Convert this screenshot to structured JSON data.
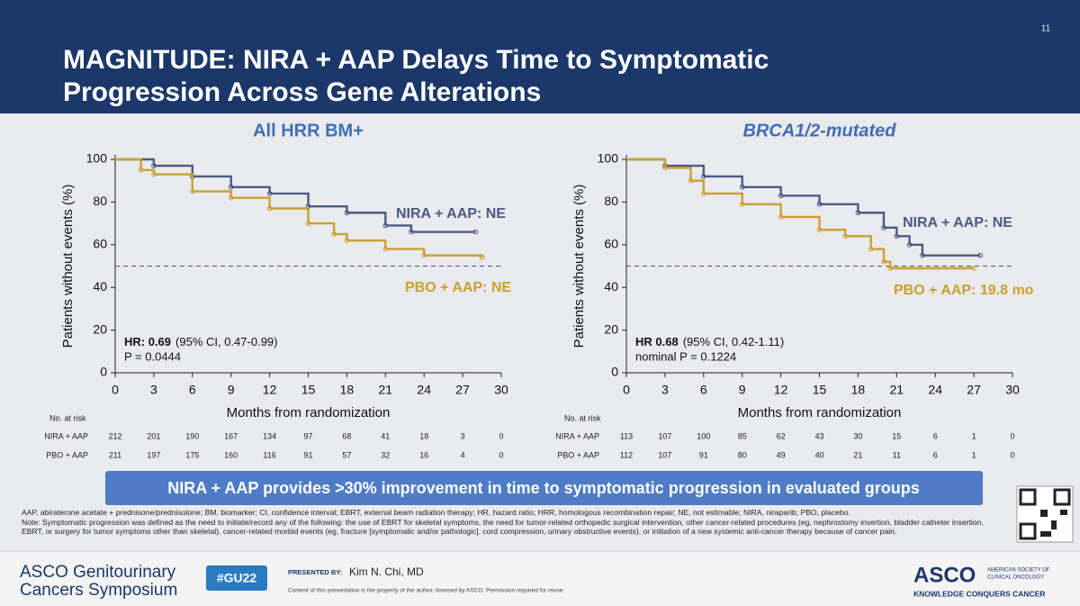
{
  "slide": {
    "page_number": "11",
    "title_line1": "MAGNITUDE: NIRA + AAP Delays Time to Symptomatic",
    "title_line2": "Progression Across Gene Alterations",
    "banner": "NIRA + AAP provides >30% improvement in time to symptomatic progression in evaluated groups",
    "footnote1": "AAP, abiraterone acetate + prednisone/prednisolone; BM, biomarker; CI, confidence interval; EBRT, external beam radiation therapy; HR, hazard ratio; HRR, homologous recombination repair; NE, not estimable; NIRA, niraparib; PBO, placebo.",
    "footnote2": "Note: Symptomatic progression was defined as the need to initiate/record any of the following: the use of EBRT for skeletal symptoms, the need for tumor-related orthopedic surgical intervention, other cancer-related procedures (eg, nephrostomy insertion, bladder catheter insertion, EBRT, or surgery for tumor symptoms other than skeletal), cancer-related morbid events (eg, fracture [symptomatic and/or pathologic], cord compression, urinary obstructive events), or initiation of a new systemic anti-cancer therapy because of cancer pain.",
    "footer": {
      "brand1": "ASCO Genitourinary",
      "brand2": "Cancers Symposium",
      "hashtag": "#GU22",
      "presented_by": "PRESENTED BY:",
      "presenter": "Kim N. Chi, MD",
      "notice": "Content of this presentation is the property of the author, licensed by ASCO. Permission required for reuse.",
      "asco": "ASCO",
      "asco_sub1": "AMERICAN SOCIETY OF",
      "asco_sub2": "CLINICAL ONCOLOGY",
      "tagline": "KNOWLEDGE CONQUERS CANCER"
    }
  },
  "chart_data": [
    {
      "type": "km",
      "title": "All HRR BM+",
      "x_label": "Months from randomization",
      "y_label": "Patients without events (%)",
      "xlim": [
        0,
        30
      ],
      "ylim": [
        0,
        100
      ],
      "xticks": [
        0,
        3,
        6,
        9,
        12,
        15,
        18,
        21,
        24,
        27,
        30
      ],
      "yticks": [
        0,
        20,
        40,
        60,
        80,
        100
      ],
      "reference_line": 50,
      "series": [
        {
          "name": "NIRA + AAP: NE",
          "color": "#4b5a82",
          "x": [
            0,
            3,
            6,
            9,
            12,
            15,
            18,
            21,
            23,
            28
          ],
          "values": [
            100,
            97,
            92,
            87,
            84,
            78,
            75,
            69,
            66,
            66
          ]
        },
        {
          "name": "PBO + AAP: NE",
          "color": "#c9a030",
          "x": [
            0,
            2,
            3,
            6,
            9,
            12,
            15,
            17,
            18,
            21,
            24,
            28.5
          ],
          "values": [
            100,
            95,
            93,
            85,
            82,
            77,
            70,
            65,
            62,
            58,
            55,
            54
          ]
        }
      ],
      "annotation": {
        "hr": "HR: 0.69",
        "ci": "(95% CI, 0.47-0.99)",
        "p": "P = 0.0444"
      },
      "risk_table": {
        "title": "No. at risk",
        "rows": [
          {
            "label": "NIRA + AAP",
            "values": [
              212,
              201,
              190,
              167,
              134,
              97,
              68,
              41,
              18,
              3,
              0
            ]
          },
          {
            "label": "PBO + AAP",
            "values": [
              211,
              197,
              175,
              160,
              116,
              91,
              57,
              32,
              16,
              4,
              0
            ]
          }
        ]
      }
    },
    {
      "type": "km",
      "title": "BRCA1/2-mutated",
      "x_label": "Months from randomization",
      "y_label": "Patients without events (%)",
      "xlim": [
        0,
        30
      ],
      "ylim": [
        0,
        100
      ],
      "xticks": [
        0,
        3,
        6,
        9,
        12,
        15,
        18,
        21,
        24,
        27,
        30
      ],
      "yticks": [
        0,
        20,
        40,
        60,
        80,
        100
      ],
      "reference_line": 50,
      "series": [
        {
          "name": "NIRA + AAP: NE",
          "color": "#4b5a82",
          "x": [
            0,
            3,
            6,
            9,
            12,
            15,
            18,
            20,
            21,
            22,
            23,
            27.5
          ],
          "values": [
            100,
            97,
            92,
            87,
            83,
            79,
            75,
            68,
            64,
            60,
            55,
            55
          ]
        },
        {
          "name": "PBO + AAP: 19.8 mo",
          "color": "#c9a030",
          "x": [
            0,
            3,
            5,
            6,
            9,
            12,
            15,
            17,
            19,
            20,
            20.5,
            27
          ],
          "values": [
            100,
            96,
            90,
            84,
            79,
            73,
            67,
            64,
            58,
            52,
            49,
            49
          ]
        }
      ],
      "annotation": {
        "hr": "HR 0.68",
        "ci": "(95% CI, 0.42-1.11)",
        "p": "nominal P = 0.1224"
      },
      "risk_table": {
        "title": "No. at risk",
        "rows": [
          {
            "label": "NIRA + AAP",
            "values": [
              113,
              107,
              100,
              85,
              62,
              43,
              30,
              15,
              6,
              1,
              0
            ]
          },
          {
            "label": "PBO + AAP",
            "values": [
              112,
              107,
              91,
              80,
              49,
              40,
              21,
              11,
              6,
              1,
              0
            ]
          }
        ]
      }
    }
  ]
}
